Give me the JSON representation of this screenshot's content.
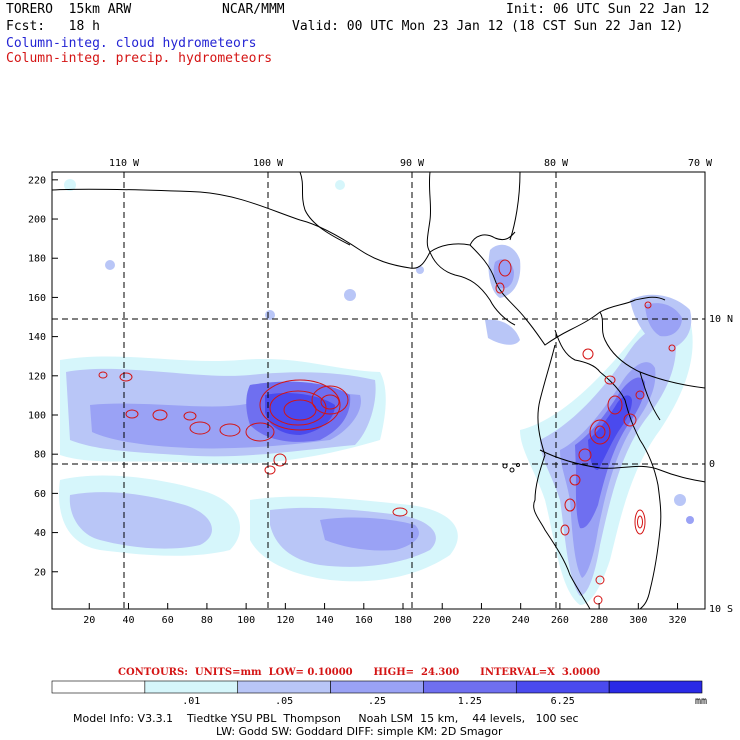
{
  "header": {
    "model": "TORERO  15km ARW",
    "org": "NCAR/MMM",
    "init": "Init: 06 UTC Sun 22 Jan 12",
    "fcst": "Fcst:   18 h",
    "valid": "Valid: 00 UTC Mon 23 Jan 12 (18 CST Sun 22 Jan 12)",
    "field1": "Column-integ. cloud hydrometeors",
    "field2": "Column-integ. precip. hydrometeors"
  },
  "colors": {
    "cloud_field": "#2424d4",
    "precip_field": "#d41414",
    "shade_levels": [
      "#ffffff",
      "#d6f6fb",
      "#b9c6f7",
      "#9aa2f5",
      "#6f6ff0",
      "#4a4aee",
      "#2a2ae6"
    ]
  },
  "axes": {
    "top_lon_labels": [
      "110 W",
      "100 W",
      "90 W",
      "80 W",
      "70 W"
    ],
    "right_lat_labels": [
      "10 N",
      "0",
      "10 S"
    ],
    "x_ticks": [
      "20",
      "40",
      "60",
      "80",
      "100",
      "120",
      "140",
      "160",
      "180",
      "200",
      "220",
      "240",
      "260",
      "280",
      "300",
      "320"
    ],
    "y_ticks": [
      "20",
      "40",
      "60",
      "80",
      "100",
      "120",
      "140",
      "160",
      "180",
      "200",
      "220"
    ]
  },
  "contours": {
    "label": "CONTOURS:  UNITS=mm  LOW= 0.10000      HIGH=  24.300      INTERVAL=X  3.0000"
  },
  "colorbar": {
    "tick_labels": [
      ".01",
      ".05",
      ".25",
      "1.25",
      "6.25"
    ],
    "unit": "mm"
  },
  "footer": {
    "line1": "Model Info: V3.3.1    Tiedtke YSU PBL  Thompson     Noah LSM  15 km,    44 levels,   100 sec",
    "line2": "LW: Godd SW: Goddard DIFF: simple KM: 2D Smagor"
  }
}
